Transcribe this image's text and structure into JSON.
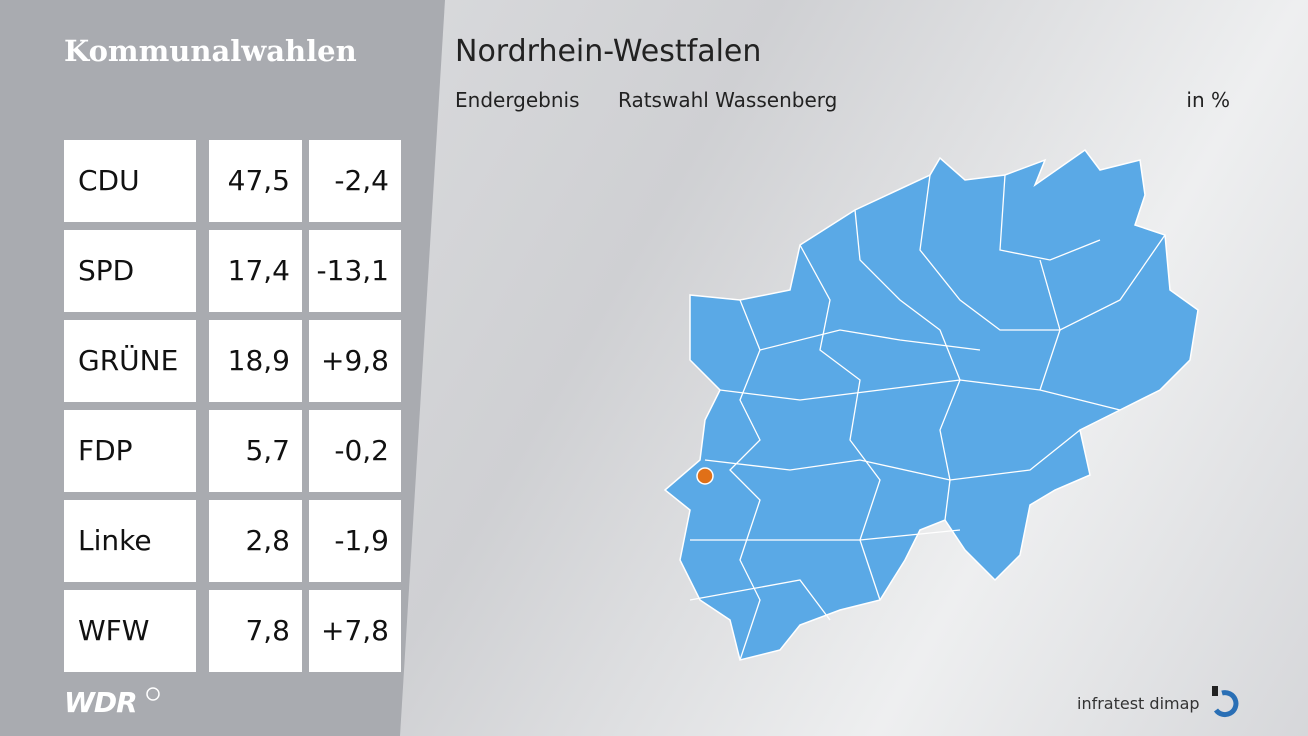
{
  "header": {
    "section": "Kommunalwahlen",
    "title": "Nordrhein-Westfalen",
    "subtitle": "Endergebnis",
    "election": "Ratswahl Wassenberg",
    "unit": "in %"
  },
  "table": {
    "rows": [
      [
        "CDU",
        "47,5",
        "-2,4"
      ],
      [
        "SPD",
        "17,4",
        "-13,1"
      ],
      [
        "GRÜNE",
        "18,9",
        "+9,8"
      ],
      [
        "FDP",
        "5,7",
        "-0,2"
      ],
      [
        "Linke",
        "2,8",
        "-1,9"
      ],
      [
        "WFW",
        "7,8",
        "+7,8"
      ]
    ]
  },
  "footer": {
    "broadcaster": "WDR",
    "source": "infratest dimap"
  }
}
